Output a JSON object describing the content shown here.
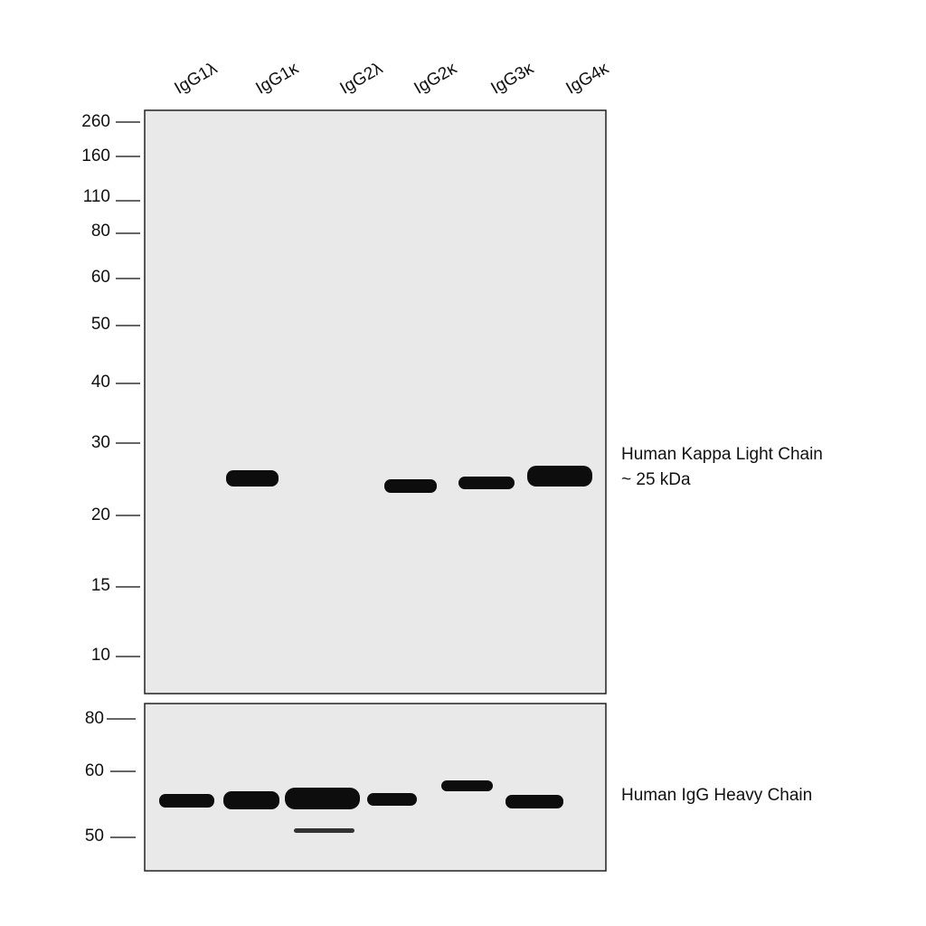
{
  "lanes": [
    "IgG1λ",
    "IgG1κ",
    "IgG2λ",
    "IgG2κ",
    "IgG3κ",
    "IgG4κ"
  ],
  "top_panel": {
    "markers": [
      "260",
      "160",
      "110",
      "80",
      "60",
      "50",
      "40",
      "30",
      "20",
      "15",
      "10"
    ],
    "annotation": [
      "Human Kappa Light Chain",
      "~ 25 kDa"
    ]
  },
  "bottom_panel": {
    "markers": [
      "80",
      "60",
      "50"
    ],
    "annotation": "Human IgG Heavy Chain"
  }
}
